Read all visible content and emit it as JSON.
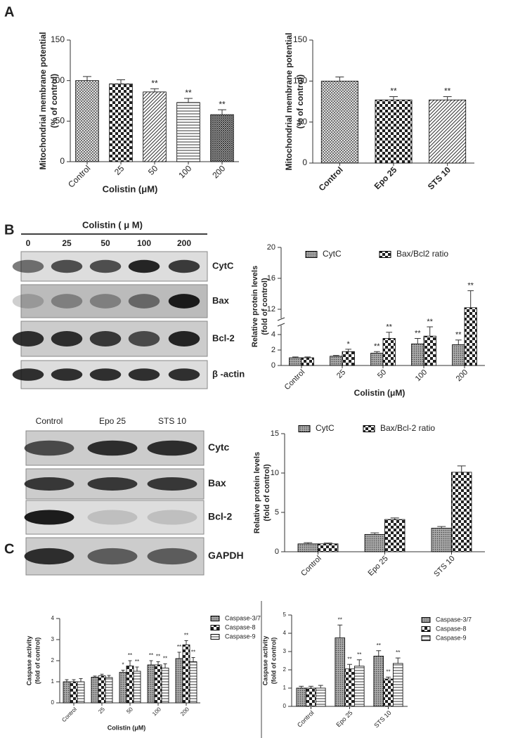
{
  "panels": [
    "A",
    "B",
    "C"
  ],
  "blots": [
    {
      "header": "Colistin ( μ M)",
      "columns": [
        "0",
        "25",
        "50",
        "100",
        "200"
      ],
      "rows": [
        "CytC",
        "Bax",
        "Bcl-2",
        "β -actin"
      ]
    },
    {
      "columns": [
        "Control",
        "Epo 25",
        "STS 10"
      ],
      "rows": [
        "Cytc",
        "Bax",
        "Bcl-2",
        "GAPDH"
      ]
    }
  ],
  "chart_data": [
    {
      "type": "bar",
      "categories": [
        "Control",
        "25",
        "50",
        "100",
        "200"
      ],
      "values": [
        100,
        96,
        86,
        73,
        58
      ],
      "errors": [
        5,
        5,
        4,
        5,
        6
      ],
      "annotations": [
        null,
        null,
        "**",
        "**",
        "**"
      ],
      "ylabel": [
        "Mitochondrial membrane potential",
        "(% of control)"
      ],
      "xlabel": "Colistin (μM)",
      "ylim": [
        0,
        150
      ],
      "yticks": [
        0,
        50,
        100,
        150
      ],
      "color": "#000000"
    },
    {
      "type": "bar",
      "categories": [
        "Control",
        "Epo 25",
        "STS 10"
      ],
      "values": [
        100,
        77,
        77
      ],
      "errors": [
        5,
        4,
        4
      ],
      "annotations": [
        null,
        "**",
        "**"
      ],
      "ylabel": [
        "Mitochondrial membrane potential",
        "(% of control)"
      ],
      "ylim": [
        0,
        150
      ],
      "yticks": [
        0,
        50,
        100,
        150
      ],
      "color": "#000000"
    },
    {
      "type": "bar",
      "categories": [
        "Control",
        "25",
        "50",
        "100",
        "200"
      ],
      "series": [
        {
          "name": "CytC",
          "color": "#000000",
          "values": [
            1.0,
            1.2,
            1.6,
            2.8,
            2.7
          ],
          "errors": [
            0.1,
            0.1,
            0.2,
            0.7,
            0.6
          ],
          "annotations": [
            null,
            null,
            "**",
            "**",
            "**"
          ]
        },
        {
          "name": "Bax/Bcl2 ratio",
          "color": "#000000",
          "values": [
            1.0,
            1.8,
            3.5,
            3.8,
            12.2
          ],
          "errors": [
            0.1,
            0.3,
            0.8,
            1.2,
            2.2
          ],
          "annotations": [
            null,
            "*",
            "**",
            "**",
            "**"
          ]
        }
      ],
      "ylabel": [
        "Relative protein levels",
        "(fold of control)"
      ],
      "xlabel": "Colistin (μM)",
      "ylim": [
        0,
        20
      ],
      "ybreak": [
        5,
        11
      ],
      "yticks": [
        0,
        2,
        4,
        12,
        16,
        20
      ]
    },
    {
      "type": "bar",
      "categories": [
        "Control",
        "Epo 25",
        "STS 10"
      ],
      "series": [
        {
          "name": "CytC",
          "color": "#000000",
          "values": [
            1.0,
            2.2,
            3.0
          ],
          "errors": [
            0.15,
            0.2,
            0.2
          ]
        },
        {
          "name": "Bax/Bcl-2 ratio",
          "color": "#000000",
          "values": [
            1.0,
            4.1,
            10.1
          ],
          "errors": [
            0.1,
            0.2,
            0.8
          ]
        }
      ],
      "ylabel": [
        "Relative protein levels",
        "(fold of control)"
      ],
      "ylim": [
        0,
        15
      ],
      "yticks": [
        0,
        5,
        10,
        15
      ]
    },
    {
      "type": "bar",
      "categories": [
        "Control",
        "25",
        "50",
        "100",
        "200"
      ],
      "series": [
        {
          "name": "Caspase-3/7",
          "color": "#000000",
          "values": [
            1.0,
            1.22,
            1.45,
            1.8,
            2.1
          ],
          "errors": [
            0.1,
            0.05,
            0.1,
            0.2,
            0.3
          ],
          "annotations": [
            null,
            null,
            "*",
            "**",
            "**"
          ]
        },
        {
          "name": "Caspase-8",
          "color": "#000000",
          "values": [
            1.0,
            1.28,
            1.75,
            1.8,
            2.75
          ],
          "errors": [
            0.1,
            0.08,
            0.25,
            0.15,
            0.2
          ],
          "annotations": [
            null,
            null,
            "**",
            "**",
            "**"
          ]
        },
        {
          "name": "Caspase-9",
          "color": "#000000",
          "values": [
            1.0,
            1.2,
            1.5,
            1.65,
            1.95
          ],
          "errors": [
            0.15,
            0.1,
            0.2,
            0.2,
            0.2
          ],
          "annotations": [
            null,
            null,
            "**",
            "**",
            "**"
          ]
        }
      ],
      "ylabel": [
        "Caspase activity",
        "(fold of control)"
      ],
      "xlabel": "Colistin (μM)",
      "ylim": [
        0,
        4
      ],
      "yticks": [
        0,
        1,
        2,
        3,
        4
      ]
    },
    {
      "type": "bar",
      "categories": [
        "Control",
        "Epo 25",
        "STS 10"
      ],
      "series": [
        {
          "name": "Caspase-3/7",
          "color": "#000000",
          "values": [
            1.0,
            3.75,
            2.75
          ],
          "errors": [
            0.1,
            0.7,
            0.3
          ],
          "annotations": [
            null,
            "**",
            "**"
          ]
        },
        {
          "name": "Caspase-8",
          "color": "#000000",
          "values": [
            1.0,
            2.05,
            1.5
          ],
          "errors": [
            0.1,
            0.25,
            0.1
          ],
          "annotations": [
            null,
            "**",
            "**"
          ]
        },
        {
          "name": "Caspase-9",
          "color": "#000000",
          "values": [
            1.0,
            2.2,
            2.35
          ],
          "errors": [
            0.15,
            0.35,
            0.3
          ],
          "annotations": [
            null,
            "**",
            "**"
          ]
        }
      ],
      "ylabel": [
        "Caspase activity",
        "(fold of control)"
      ],
      "ylim": [
        0,
        5
      ],
      "yticks": [
        0,
        1,
        2,
        3,
        4,
        5
      ]
    }
  ]
}
